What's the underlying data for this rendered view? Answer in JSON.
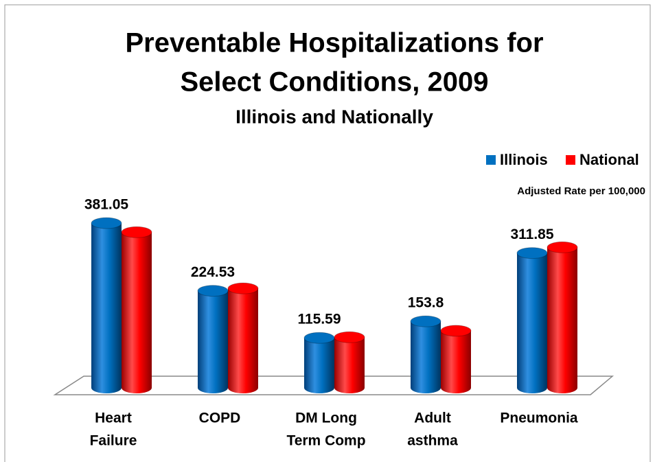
{
  "chart_data": {
    "type": "cylinder_bar",
    "title": [
      "Preventable Hospitalizations for",
      "Select Conditions, 2009"
    ],
    "subtitle": "Illinois and Nationally",
    "y_label": "Adjusted Rate per 100,000",
    "legend": "top-right",
    "categories": [
      [
        "Heart",
        "Failure"
      ],
      [
        "COPD"
      ],
      [
        "DM Long",
        "Term Comp"
      ],
      [
        "Adult",
        "asthma"
      ],
      [
        "Pneumonia"
      ]
    ],
    "series": [
      {
        "name": "Illinois",
        "color": "#0070c0",
        "show_labels": true,
        "values": [
          381.05,
          224.53,
          115.59,
          153.8,
          311.85
        ]
      },
      {
        "name": "National",
        "color": "#ff0000",
        "show_labels": false,
        "values": [
          360,
          230,
          117,
          132,
          325
        ]
      }
    ]
  }
}
